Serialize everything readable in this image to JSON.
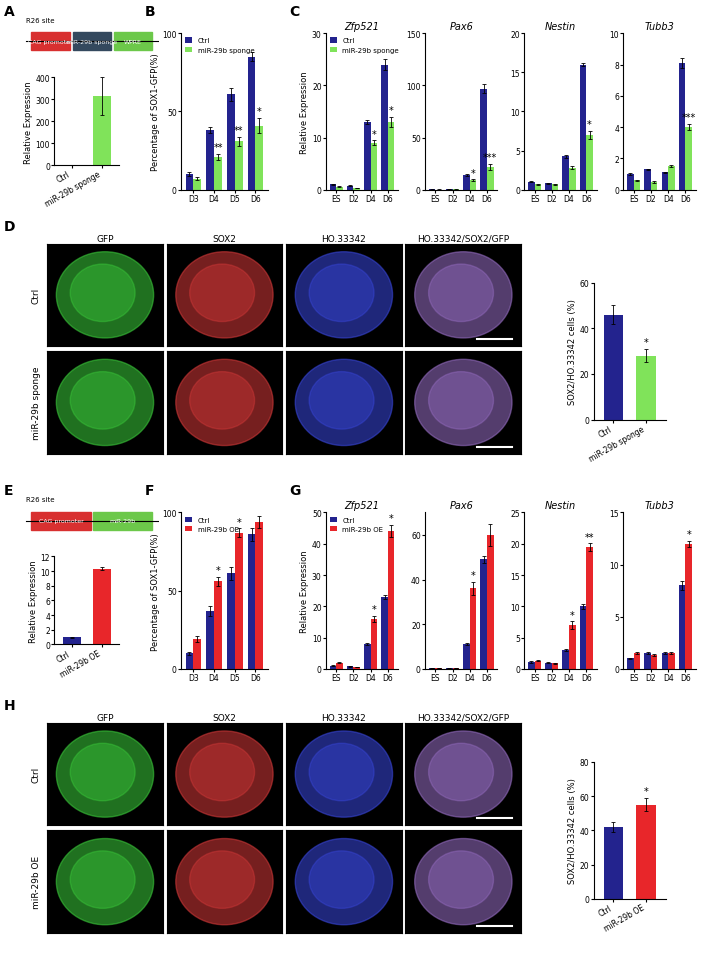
{
  "panel_labels": [
    "A",
    "B",
    "C",
    "D",
    "E",
    "F",
    "G",
    "H"
  ],
  "schematics": [
    {
      "panel": "A",
      "site": "R26 site",
      "elements": [
        {
          "label": "CAG promoter",
          "color": "#d83030"
        },
        {
          "label": "miR-29b sponge",
          "color": "#34495e"
        },
        {
          "label": "WPRE",
          "color": "#6cc84a"
        }
      ]
    },
    {
      "panel": "E",
      "site": "R26 site",
      "elements": [
        {
          "label": "CAG promoter",
          "color": "#d83030"
        },
        {
          "label": "miR-29b",
          "color": "#6cc84a"
        }
      ]
    }
  ],
  "image_grids": [
    {
      "panel": "D",
      "channels": [
        "GFP",
        "SOX2",
        "HO.33342",
        "HO.33342/SOX2/GFP"
      ],
      "conditions": [
        "Ctrl",
        "miR-29b sponge"
      ],
      "colors": [
        "#3ccf3c",
        "#d83a3a",
        "#3a48e0",
        "#9a70c8"
      ]
    },
    {
      "panel": "H",
      "channels": [
        "GFP",
        "SOX2",
        "HO.33342",
        "HO.33342/SOX2/GFP"
      ],
      "conditions": [
        "Ctrl",
        "miR-29b OE"
      ],
      "colors": [
        "#3ccf3c",
        "#d83a3a",
        "#3a48e0",
        "#9a70c8"
      ]
    }
  ],
  "chart_data": [
    {
      "panel": "A",
      "type": "bar",
      "categories": [
        "Ctrl",
        "miR-29b sponge"
      ],
      "values": [
        1,
        315
      ],
      "errors": [
        0.3,
        85
      ],
      "colors": [
        "#23238e",
        "#80e35a"
      ],
      "y_label": "Relative Expression",
      "ylim": [
        0,
        400
      ],
      "yticks": [
        0,
        100,
        200,
        300,
        400
      ]
    },
    {
      "panel": "B",
      "type": "bar",
      "categories": [
        "D3",
        "D4",
        "D5",
        "D6"
      ],
      "y_label": "Percentage of SOX1-GFP(%)",
      "ylim": [
        0,
        100
      ],
      "yticks": [
        0,
        50,
        100
      ],
      "legend": "upper left",
      "series": [
        {
          "name": "Ctrl",
          "color": "#23238e",
          "values": [
            10,
            38,
            61,
            85
          ],
          "errors": [
            1,
            2,
            4,
            3
          ],
          "annotations": [
            null,
            null,
            null,
            null
          ]
        },
        {
          "name": "miR-29b sponge",
          "color": "#80e35a",
          "values": [
            7,
            21,
            31,
            41
          ],
          "errors": [
            1,
            2,
            3,
            5
          ],
          "annotations": [
            null,
            "**",
            "**",
            "*"
          ]
        }
      ]
    },
    {
      "panel": "C",
      "type": "bar",
      "title": "Zfp521",
      "categories": [
        "ES",
        "D2",
        "D4",
        "D6"
      ],
      "y_label": "Relative Expression",
      "ylim": [
        0,
        30
      ],
      "yticks": [
        0,
        10,
        20,
        30
      ],
      "legend": "upper left",
      "series": [
        {
          "name": "Ctrl",
          "color": "#23238e",
          "values": [
            1,
            0.8,
            13,
            24
          ],
          "errors": [
            0.1,
            0.1,
            0.4,
            1
          ],
          "annotations": [
            null,
            null,
            null,
            null
          ]
        },
        {
          "name": "miR-29b sponge",
          "color": "#80e35a",
          "values": [
            0.6,
            0.3,
            9,
            13
          ],
          "errors": [
            0.1,
            0.05,
            0.5,
            1
          ],
          "annotations": [
            null,
            null,
            "*",
            "*"
          ]
        }
      ]
    },
    {
      "panel": "C",
      "type": "bar",
      "title": "Pax6",
      "categories": [
        "ES",
        "D2",
        "D4",
        "D6"
      ],
      "ylim": [
        0,
        150
      ],
      "yticks": [
        0,
        50,
        100,
        150
      ],
      "series": [
        {
          "name": "Ctrl",
          "color": "#23238e",
          "values": [
            0.3,
            0.5,
            14,
            97
          ],
          "errors": [
            0.1,
            0.1,
            1,
            4
          ],
          "annotations": [
            null,
            null,
            null,
            null
          ]
        },
        {
          "name": "miR-29b sponge",
          "color": "#80e35a",
          "values": [
            0.2,
            0.3,
            9,
            22
          ],
          "errors": [
            0.1,
            0.1,
            1,
            3
          ],
          "annotations": [
            null,
            null,
            "*",
            "***"
          ]
        }
      ]
    },
    {
      "panel": "C",
      "type": "bar",
      "title": "Nestin",
      "categories": [
        "ES",
        "D2",
        "D4",
        "D6"
      ],
      "ylim": [
        0,
        20
      ],
      "yticks": [
        0,
        5,
        10,
        15,
        20
      ],
      "series": [
        {
          "name": "Ctrl",
          "color": "#23238e",
          "values": [
            1,
            0.8,
            4.3,
            16
          ],
          "errors": [
            0.05,
            0.05,
            0.2,
            0.2
          ],
          "annotations": [
            null,
            null,
            null,
            null
          ]
        },
        {
          "name": "miR-29b sponge",
          "color": "#80e35a",
          "values": [
            0.7,
            0.7,
            2.8,
            7
          ],
          "errors": [
            0.05,
            0.05,
            0.2,
            0.5
          ],
          "annotations": [
            null,
            null,
            null,
            "*"
          ]
        }
      ]
    },
    {
      "panel": "C",
      "type": "bar",
      "title": "Tubb3",
      "categories": [
        "ES",
        "D2",
        "D4",
        "D6"
      ],
      "ylim": [
        0,
        10
      ],
      "yticks": [
        0,
        2,
        4,
        6,
        8,
        10
      ],
      "series": [
        {
          "name": "Ctrl",
          "color": "#23238e",
          "values": [
            1,
            1.3,
            1.1,
            8.1
          ],
          "errors": [
            0.05,
            0.05,
            0.05,
            0.3
          ],
          "annotations": [
            null,
            null,
            null,
            null
          ]
        },
        {
          "name": "miR-29b sponge",
          "color": "#80e35a",
          "values": [
            0.6,
            0.5,
            1.5,
            4
          ],
          "errors": [
            0.05,
            0.05,
            0.05,
            0.2
          ],
          "annotations": [
            null,
            null,
            null,
            "***"
          ]
        }
      ]
    },
    {
      "panel": "D",
      "type": "bar",
      "categories": [
        "Ctrl",
        "miR-29b sponge"
      ],
      "values": [
        46,
        28
      ],
      "errors": [
        4,
        3
      ],
      "annotations": [
        null,
        "*"
      ],
      "colors": [
        "#23238e",
        "#80e35a"
      ],
      "y_label": "SOX2/HO.33342 cells (%)",
      "ylim": [
        0,
        60
      ],
      "yticks": [
        0,
        20,
        40,
        60
      ]
    },
    {
      "panel": "E",
      "type": "bar",
      "categories": [
        "Ctrl",
        "miR-29b OE"
      ],
      "values": [
        1,
        10.3
      ],
      "errors": [
        0.05,
        0.2
      ],
      "colors": [
        "#23238e",
        "#e8262a"
      ],
      "y_label": "Relative Expression",
      "ylim": [
        0,
        12
      ],
      "yticks": [
        0,
        2,
        4,
        6,
        8,
        10,
        12
      ]
    },
    {
      "panel": "F",
      "type": "bar",
      "categories": [
        "D3",
        "D4",
        "D5",
        "D6"
      ],
      "y_label": "Percentage of SOX1-GFP(%)",
      "ylim": [
        0,
        100
      ],
      "yticks": [
        0,
        50,
        100
      ],
      "legend": "upper left",
      "series": [
        {
          "name": "Ctrl",
          "color": "#23238e",
          "values": [
            10,
            37,
            61,
            86
          ],
          "errors": [
            1,
            3,
            4,
            4
          ],
          "annotations": [
            null,
            null,
            null,
            null
          ]
        },
        {
          "name": "miR-29b OE",
          "color": "#e8262a",
          "values": [
            19,
            56,
            87,
            94
          ],
          "errors": [
            2,
            3,
            3,
            4
          ],
          "annotations": [
            null,
            "*",
            "*",
            null
          ]
        }
      ]
    },
    {
      "panel": "G",
      "type": "bar",
      "title": "Zfp521",
      "categories": [
        "ES",
        "D2",
        "D4",
        "D6"
      ],
      "y_label": "Relative Expression",
      "ylim": [
        0,
        50
      ],
      "yticks": [
        0,
        10,
        20,
        30,
        40,
        50
      ],
      "legend": "upper left",
      "series": [
        {
          "name": "Ctrl",
          "color": "#23238e",
          "values": [
            1,
            0.8,
            8,
            23
          ],
          "errors": [
            0.1,
            0.1,
            0.4,
            0.5
          ],
          "annotations": [
            null,
            null,
            null,
            null
          ]
        },
        {
          "name": "miR-29b OE",
          "color": "#e8262a",
          "values": [
            2,
            0.6,
            16,
            44
          ],
          "errors": [
            0.2,
            0.1,
            1,
            2
          ],
          "annotations": [
            null,
            null,
            "*",
            "*"
          ]
        }
      ]
    },
    {
      "panel": "G",
      "type": "bar",
      "title": "Pax6",
      "categories": [
        "ES",
        "D2",
        "D4",
        "D6"
      ],
      "ylim": [
        0,
        70
      ],
      "yticks": [
        0,
        20,
        40,
        60
      ],
      "series": [
        {
          "name": "Ctrl",
          "color": "#23238e",
          "values": [
            0.3,
            0.5,
            11,
            49
          ],
          "errors": [
            0.1,
            0.1,
            0.5,
            1.5
          ],
          "annotations": [
            null,
            null,
            null,
            null
          ]
        },
        {
          "name": "miR-29b OE",
          "color": "#e8262a",
          "values": [
            0.4,
            0.4,
            36,
            60
          ],
          "errors": [
            0.1,
            0.1,
            3,
            5
          ],
          "annotations": [
            null,
            null,
            "*",
            null
          ]
        }
      ]
    },
    {
      "panel": "G",
      "type": "bar",
      "title": "Nestin",
      "categories": [
        "ES",
        "D2",
        "D4",
        "D6"
      ],
      "ylim": [
        0,
        25
      ],
      "yticks": [
        0,
        5,
        10,
        15,
        20,
        25
      ],
      "series": [
        {
          "name": "Ctrl",
          "color": "#23238e",
          "values": [
            1.1,
            1,
            3,
            10
          ],
          "errors": [
            0.1,
            0.1,
            0.2,
            0.4
          ],
          "annotations": [
            null,
            null,
            null,
            null
          ]
        },
        {
          "name": "miR-29b OE",
          "color": "#e8262a",
          "values": [
            1.3,
            0.9,
            7,
            19.5
          ],
          "errors": [
            0.1,
            0.1,
            0.6,
            0.6
          ],
          "annotations": [
            null,
            null,
            "*",
            "**"
          ]
        }
      ]
    },
    {
      "panel": "G",
      "type": "bar",
      "title": "Tubb3",
      "categories": [
        "ES",
        "D2",
        "D4",
        "D6"
      ],
      "ylim": [
        0,
        15
      ],
      "yticks": [
        0,
        5,
        10,
        15
      ],
      "series": [
        {
          "name": "Ctrl",
          "color": "#23238e",
          "values": [
            1,
            1.5,
            1.5,
            8
          ],
          "errors": [
            0.05,
            0.1,
            0.1,
            0.4
          ],
          "annotations": [
            null,
            null,
            null,
            null
          ]
        },
        {
          "name": "miR-29b OE",
          "color": "#e8262a",
          "values": [
            1.5,
            1.3,
            1.5,
            12
          ],
          "errors": [
            0.1,
            0.1,
            0.1,
            0.3
          ],
          "annotations": [
            null,
            null,
            null,
            "*"
          ]
        }
      ]
    },
    {
      "panel": "H",
      "type": "bar",
      "categories": [
        "Ctrl",
        "miR-29b OE"
      ],
      "values": [
        42,
        55
      ],
      "errors": [
        3,
        4
      ],
      "annotations": [
        null,
        "*"
      ],
      "colors": [
        "#23238e",
        "#e8262a"
      ],
      "y_label": "SOX2/HO.33342 cells (%)",
      "ylim": [
        0,
        80
      ],
      "yticks": [
        0,
        20,
        40,
        60,
        80
      ]
    }
  ]
}
